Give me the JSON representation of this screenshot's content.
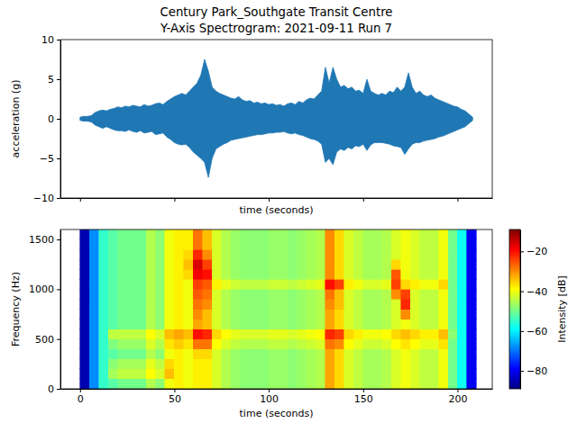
{
  "chart_data": [
    {
      "type": "area",
      "title": "Century Park_Southgate Transit Centre",
      "subtitle": "Y-Axis Spectrogram: 2021-09-11 Run 7",
      "xlabel": "time (seconds)",
      "ylabel": "acceleration (g)",
      "x": [
        0,
        2,
        4,
        6,
        8,
        10,
        12,
        14,
        16,
        18,
        20,
        22,
        24,
        26,
        28,
        30,
        32,
        34,
        36,
        38,
        40,
        42,
        44,
        46,
        48,
        50,
        52,
        54,
        56,
        58,
        60,
        62,
        64,
        66,
        68,
        70,
        72,
        74,
        76,
        78,
        80,
        82,
        84,
        86,
        88,
        90,
        92,
        94,
        96,
        98,
        100,
        102,
        104,
        106,
        108,
        110,
        112,
        114,
        116,
        118,
        120,
        122,
        124,
        126,
        128,
        130,
        132,
        134,
        136,
        138,
        140,
        142,
        144,
        146,
        148,
        150,
        152,
        154,
        156,
        158,
        160,
        162,
        164,
        166,
        168,
        170,
        172,
        174,
        176,
        178,
        180,
        182,
        184,
        186,
        188,
        190,
        192,
        194,
        196,
        198,
        200,
        202,
        204,
        206,
        208
      ],
      "series": [
        {
          "color": "#1f77b4",
          "values": [
            0.2,
            0.3,
            0.3,
            0.4,
            0.8,
            1.0,
            1.1,
            1.0,
            1.2,
            1.3,
            1.5,
            1.4,
            1.6,
            1.5,
            1.7,
            1.6,
            1.5,
            1.8,
            1.6,
            1.7,
            1.9,
            2.0,
            1.8,
            2.2,
            2.5,
            2.8,
            3.0,
            3.2,
            3.0,
            3.5,
            4.0,
            4.5,
            5.5,
            7.5,
            6.0,
            4.0,
            3.5,
            3.2,
            3.0,
            2.8,
            2.6,
            2.5,
            2.8,
            2.4,
            2.2,
            2.3,
            2.0,
            2.1,
            1.9,
            2.0,
            1.8,
            1.9,
            1.7,
            1.8,
            1.6,
            1.9,
            2.0,
            1.8,
            2.2,
            2.0,
            2.4,
            2.6,
            2.5,
            3.0,
            3.5,
            6.5,
            4.5,
            6.5,
            5.0,
            4.0,
            4.2,
            3.8,
            4.0,
            3.5,
            3.6,
            3.2,
            5.0,
            3.5,
            3.2,
            3.0,
            3.2,
            3.0,
            3.5,
            3.3,
            4.0,
            3.5,
            4.0,
            5.8,
            4.0,
            3.2,
            3.5,
            3.0,
            2.8,
            3.0,
            2.6,
            2.4,
            2.2,
            2.0,
            1.8,
            1.6,
            1.5,
            1.2,
            1.0,
            0.6,
            0.2
          ],
          "lower": [
            -0.2,
            -0.3,
            -0.3,
            -0.4,
            -0.8,
            -1.0,
            -1.2,
            -1.0,
            -1.2,
            -1.4,
            -1.5,
            -1.5,
            -1.6,
            -1.4,
            -1.6,
            -1.7,
            -1.5,
            -1.8,
            -1.7,
            -1.6,
            -2.0,
            -1.9,
            -1.8,
            -2.3,
            -2.6,
            -3.0,
            -3.2,
            -3.3,
            -3.2,
            -3.6,
            -4.2,
            -4.6,
            -5.0,
            -5.5,
            -7.4,
            -5.0,
            -3.8,
            -3.5,
            -3.2,
            -3.0,
            -2.7,
            -2.6,
            -2.5,
            -2.4,
            -2.3,
            -2.2,
            -2.1,
            -2.0,
            -2.0,
            -1.9,
            -1.8,
            -1.8,
            -1.7,
            -1.7,
            -1.6,
            -1.8,
            -1.9,
            -1.8,
            -2.0,
            -2.1,
            -2.3,
            -2.5,
            -2.6,
            -2.8,
            -3.2,
            -5.5,
            -5.0,
            -5.8,
            -4.2,
            -3.8,
            -4.0,
            -3.6,
            -3.8,
            -3.4,
            -3.5,
            -3.2,
            -4.0,
            -3.3,
            -3.0,
            -3.0,
            -3.0,
            -3.1,
            -3.2,
            -3.4,
            -3.5,
            -3.6,
            -4.5,
            -3.8,
            -3.2,
            -3.0,
            -3.0,
            -2.8,
            -2.7,
            -2.6,
            -2.5,
            -2.3,
            -2.2,
            -2.0,
            -1.8,
            -1.6,
            -1.4,
            -1.2,
            -1.0,
            -0.6,
            -0.2
          ]
        }
      ],
      "xlim": [
        -10.4,
        218.4
      ],
      "ylim": [
        -10,
        10
      ],
      "xticks": [
        0,
        50,
        100,
        150,
        200
      ],
      "yticks": [
        {
          "value": -10,
          "label": "−10"
        },
        {
          "value": -5,
          "label": "−5"
        },
        0,
        5,
        10
      ],
      "tick_labels": "y"
    },
    {
      "type": "heatmap",
      "xlabel": "time (seconds)",
      "ylabel": "Frequency (Hz)",
      "x_edges": [
        0,
        5,
        10,
        15,
        20,
        25,
        30,
        35,
        40,
        45,
        50,
        55,
        60,
        65,
        70,
        75,
        80,
        85,
        90,
        95,
        100,
        105,
        110,
        115,
        120,
        125,
        130,
        135,
        140,
        145,
        150,
        155,
        160,
        165,
        170,
        175,
        180,
        185,
        190,
        195,
        200,
        205,
        210
      ],
      "y_edges": [
        0,
        100,
        200,
        300,
        400,
        500,
        600,
        700,
        800,
        900,
        1000,
        1100,
        1200,
        1300,
        1400,
        1500,
        1600
      ],
      "z": [
        [
          -85,
          -68,
          -55,
          -52,
          -50,
          -50,
          -50,
          -45,
          -48,
          -40,
          -38,
          -40,
          -38,
          -38,
          -42,
          -45,
          -47,
          -48,
          -48,
          -48,
          -47,
          -47,
          -48,
          -47,
          -46,
          -45,
          -32,
          -36,
          -42,
          -44,
          -46,
          -46,
          -45,
          -42,
          -40,
          -42,
          -44,
          -44,
          -40,
          -50,
          -58,
          -80
        ],
        [
          -85,
          -68,
          -55,
          -46,
          -44,
          -44,
          -44,
          -39,
          -42,
          -34,
          -38,
          -40,
          -38,
          -38,
          -42,
          -45,
          -47,
          -48,
          -48,
          -48,
          -47,
          -47,
          -48,
          -47,
          -46,
          -45,
          -32,
          -36,
          -42,
          -44,
          -46,
          -46,
          -45,
          -42,
          -40,
          -42,
          -44,
          -44,
          -40,
          -50,
          -58,
          -80
        ],
        [
          -85,
          -68,
          -55,
          -48,
          -46,
          -46,
          -46,
          -41,
          -44,
          -36,
          -38,
          -40,
          -38,
          -38,
          -42,
          -45,
          -47,
          -48,
          -48,
          -48,
          -47,
          -47,
          -48,
          -47,
          -46,
          -45,
          -32,
          -36,
          -42,
          -44,
          -46,
          -46,
          -45,
          -42,
          -40,
          -42,
          -44,
          -44,
          -40,
          -50,
          -58,
          -80
        ],
        [
          -85,
          -68,
          -55,
          -52,
          -50,
          -50,
          -50,
          -45,
          -48,
          -40,
          -38,
          -40,
          -36,
          -36,
          -42,
          -45,
          -47,
          -48,
          -48,
          -48,
          -47,
          -47,
          -48,
          -47,
          -46,
          -45,
          -32,
          -36,
          -42,
          -44,
          -46,
          -46,
          -45,
          -42,
          -40,
          -42,
          -44,
          -44,
          -40,
          -50,
          -58,
          -80
        ],
        [
          -85,
          -68,
          -55,
          -49,
          -47,
          -47,
          -47,
          -42,
          -45,
          -37,
          -35,
          -37,
          -28,
          -28,
          -39,
          -42,
          -44,
          -45,
          -45,
          -45,
          -44,
          -44,
          -45,
          -44,
          -43,
          -42,
          -28,
          -30,
          -39,
          -41,
          -43,
          -43,
          -42,
          -39,
          -37,
          -39,
          -41,
          -41,
          -37,
          -50,
          -58,
          -80
        ],
        [
          -85,
          -68,
          -55,
          -44,
          -44,
          -44,
          -44,
          -39,
          -42,
          -34,
          -32,
          -34,
          -20,
          -22,
          -36,
          -39,
          -41,
          -42,
          -42,
          -42,
          -41,
          -41,
          -42,
          -41,
          -40,
          -39,
          -22,
          -24,
          -36,
          -38,
          -40,
          -40,
          -39,
          -36,
          -34,
          -36,
          -38,
          -38,
          -34,
          -48,
          -58,
          -80
        ],
        [
          -85,
          -68,
          -55,
          -52,
          -50,
          -50,
          -50,
          -45,
          -48,
          -40,
          -38,
          -40,
          -32,
          -34,
          -42,
          -45,
          -47,
          -48,
          -48,
          -48,
          -47,
          -47,
          -48,
          -47,
          -46,
          -45,
          -32,
          -36,
          -42,
          -44,
          -46,
          -46,
          -45,
          -42,
          -40,
          -42,
          -44,
          -44,
          -40,
          -50,
          -58,
          -80
        ],
        [
          -85,
          -68,
          -55,
          -52,
          -50,
          -50,
          -50,
          -45,
          -48,
          -40,
          -38,
          -40,
          -30,
          -34,
          -42,
          -45,
          -47,
          -48,
          -48,
          -48,
          -47,
          -47,
          -48,
          -47,
          -46,
          -45,
          -32,
          -36,
          -42,
          -44,
          -46,
          -46,
          -45,
          -42,
          -30,
          -42,
          -44,
          -44,
          -40,
          -50,
          -58,
          -80
        ],
        [
          -85,
          -68,
          -55,
          -52,
          -50,
          -50,
          -50,
          -45,
          -48,
          -40,
          -38,
          -40,
          -28,
          -30,
          -42,
          -45,
          -47,
          -48,
          -48,
          -48,
          -47,
          -47,
          -48,
          -47,
          -46,
          -45,
          -30,
          -34,
          -42,
          -44,
          -46,
          -46,
          -45,
          -42,
          -22,
          -42,
          -44,
          -44,
          -40,
          -50,
          -58,
          -80
        ],
        [
          -85,
          -68,
          -55,
          -52,
          -50,
          -50,
          -50,
          -45,
          -48,
          -40,
          -38,
          -40,
          -26,
          -28,
          -42,
          -45,
          -47,
          -48,
          -48,
          -48,
          -47,
          -47,
          -48,
          -47,
          -46,
          -45,
          -28,
          -34,
          -42,
          -44,
          -46,
          -46,
          -45,
          -30,
          -24,
          -42,
          -44,
          -44,
          -40,
          -50,
          -58,
          -80
        ],
        [
          -85,
          -68,
          -55,
          -52,
          -50,
          -50,
          -50,
          -45,
          -48,
          -40,
          -38,
          -40,
          -24,
          -26,
          -38,
          -41,
          -43,
          -44,
          -44,
          -44,
          -43,
          -43,
          -44,
          -43,
          -42,
          -41,
          -20,
          -24,
          -38,
          -40,
          -42,
          -42,
          -41,
          -24,
          -36,
          -38,
          -40,
          -40,
          -36,
          -50,
          -58,
          -80
        ],
        [
          -85,
          -68,
          -55,
          -52,
          -50,
          -50,
          -50,
          -45,
          -48,
          -40,
          -38,
          -36,
          -18,
          -20,
          -42,
          -45,
          -47,
          -48,
          -48,
          -48,
          -47,
          -47,
          -48,
          -47,
          -46,
          -45,
          -30,
          -36,
          -42,
          -44,
          -46,
          -46,
          -45,
          -26,
          -40,
          -42,
          -44,
          -44,
          -40,
          -50,
          -58,
          -80
        ],
        [
          -85,
          -68,
          -55,
          -52,
          -50,
          -50,
          -50,
          -45,
          -48,
          -40,
          -38,
          -34,
          -16,
          -24,
          -42,
          -45,
          -47,
          -48,
          -48,
          -48,
          -47,
          -47,
          -48,
          -47,
          -46,
          -45,
          -30,
          -36,
          -42,
          -44,
          -46,
          -46,
          -45,
          -36,
          -40,
          -42,
          -44,
          -44,
          -40,
          -50,
          -58,
          -80
        ],
        [
          -85,
          -68,
          -55,
          -52,
          -50,
          -50,
          -50,
          -45,
          -48,
          -40,
          -38,
          -36,
          -22,
          -30,
          -42,
          -45,
          -47,
          -48,
          -48,
          -48,
          -47,
          -47,
          -48,
          -47,
          -46,
          -45,
          -30,
          -36,
          -42,
          -44,
          -46,
          -46,
          -45,
          -42,
          -40,
          -42,
          -44,
          -44,
          -40,
          -50,
          -58,
          -80
        ],
        [
          -85,
          -68,
          -55,
          -52,
          -50,
          -50,
          -50,
          -45,
          -48,
          -40,
          -38,
          -38,
          -28,
          -34,
          -42,
          -45,
          -47,
          -48,
          -48,
          -48,
          -47,
          -47,
          -48,
          -47,
          -46,
          -45,
          -30,
          -36,
          -42,
          -44,
          -46,
          -46,
          -45,
          -42,
          -40,
          -42,
          -44,
          -44,
          -40,
          -50,
          -58,
          -80
        ],
        [
          -85,
          -68,
          -55,
          -52,
          -50,
          -50,
          -50,
          -45,
          -48,
          -40,
          -38,
          -38,
          -28,
          -34,
          -42,
          -45,
          -47,
          -48,
          -48,
          -48,
          -47,
          -47,
          -48,
          -47,
          -46,
          -45,
          -30,
          -36,
          -42,
          -44,
          -46,
          -46,
          -45,
          -42,
          -40,
          -42,
          -44,
          -44,
          -40,
          -50,
          -58,
          -80
        ]
      ],
      "xlim": [
        -10.4,
        218.4
      ],
      "ylim": [
        0,
        1600
      ],
      "xticks": [
        0,
        50,
        100,
        150,
        200
      ],
      "yticks": [
        0,
        500,
        1000,
        1500
      ],
      "colorbar": {
        "label": "Intensity [dB]",
        "lim": [
          -89,
          -9
        ],
        "ticks": [
          {
            "value": -80,
            "label": "−80"
          },
          {
            "value": -60,
            "label": "−60"
          },
          {
            "value": -40,
            "label": "−40"
          },
          {
            "value": -20,
            "label": "−20"
          }
        ]
      }
    }
  ]
}
